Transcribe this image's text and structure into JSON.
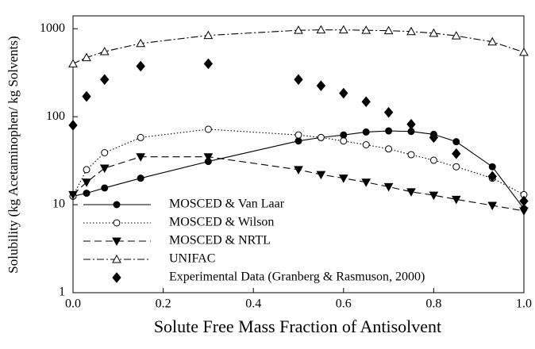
{
  "chart_data": {
    "type": "line",
    "xlabel": "Solute Free Mass Fraction of Antisolvent",
    "ylabel": "Solubility (kg Acetaminophen/ kg Solvents)",
    "x": [
      0,
      0.03,
      0.07,
      0.15,
      0.3,
      0.5,
      0.55,
      0.6,
      0.65,
      0.7,
      0.75,
      0.8,
      0.85,
      0.93,
      1.0
    ],
    "xlim": [
      0,
      1
    ],
    "ylim": [
      1,
      1400
    ],
    "log_y": true,
    "legend": "lower left",
    "xticks": [
      {
        "value": 0,
        "label": "0.0"
      },
      0.2,
      0.4,
      0.6,
      0.8,
      {
        "value": 1,
        "label": "1.0"
      }
    ],
    "yticks": [
      1,
      10,
      100,
      1000
    ],
    "series": [
      {
        "name": "MOSCED & Van Laar",
        "color": "#000000",
        "marker": "circle",
        "filled": true,
        "line": "solid",
        "values": [
          12.5,
          13.5,
          15.5,
          20,
          31,
          53,
          58,
          62,
          67,
          69,
          68,
          63,
          52,
          27,
          9
        ]
      },
      {
        "name": "MOSCED & Wilson",
        "color": "#000000",
        "marker": "circle",
        "filled": false,
        "line": "dotted",
        "values": [
          12.5,
          25,
          39,
          58,
          72,
          62,
          58,
          53,
          48,
          43,
          37,
          32,
          27,
          20,
          13
        ]
      },
      {
        "name": "MOSCED & NRTL",
        "color": "#000000",
        "marker": "triangle-down",
        "filled": true,
        "line": "dashed",
        "values": [
          13,
          18,
          26,
          35,
          35,
          25,
          22,
          20,
          18,
          16,
          14,
          12.8,
          11.5,
          9.8,
          8.5
        ]
      },
      {
        "name": "UNIFAC",
        "color": "#000000",
        "marker": "triangle-up",
        "filled": false,
        "line": "dashdot",
        "values": [
          400,
          470,
          550,
          680,
          840,
          960,
          970,
          970,
          960,
          950,
          930,
          890,
          830,
          710,
          540
        ]
      },
      {
        "name": "Experimental Data (Granberg & Rasmuson, 2000)",
        "color": "#000000",
        "marker": "diamond",
        "filled": true,
        "line": "none",
        "values": [
          80,
          170,
          265,
          375,
          400,
          265,
          225,
          185,
          148,
          112,
          82,
          58,
          38,
          21,
          11
        ]
      }
    ]
  }
}
